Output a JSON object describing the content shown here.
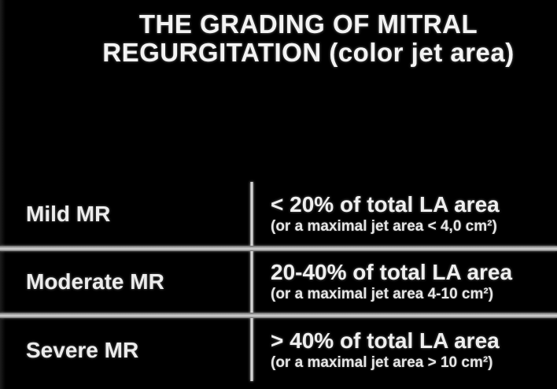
{
  "header": {
    "title_line1": "THE GRADING OF MITRAL",
    "title_line2": "REGURGITATION (color jet area)"
  },
  "table": {
    "rows": [
      {
        "grade": "Mild MR",
        "criteria": "< 20% of total LA area",
        "detail": "(or a maximal jet area < 4,0 cm²)"
      },
      {
        "grade": "Moderate MR",
        "criteria": "20-40% of total LA area",
        "detail": "(or a maximal jet area 4-10 cm²)"
      },
      {
        "grade": "Severe MR",
        "criteria": "> 40% of total LA area",
        "detail": "(or a maximal jet area > 10 cm²)"
      }
    ]
  },
  "colors": {
    "background": "#000000",
    "text": "#f0f0f0",
    "divider": "#c8c8c8"
  }
}
